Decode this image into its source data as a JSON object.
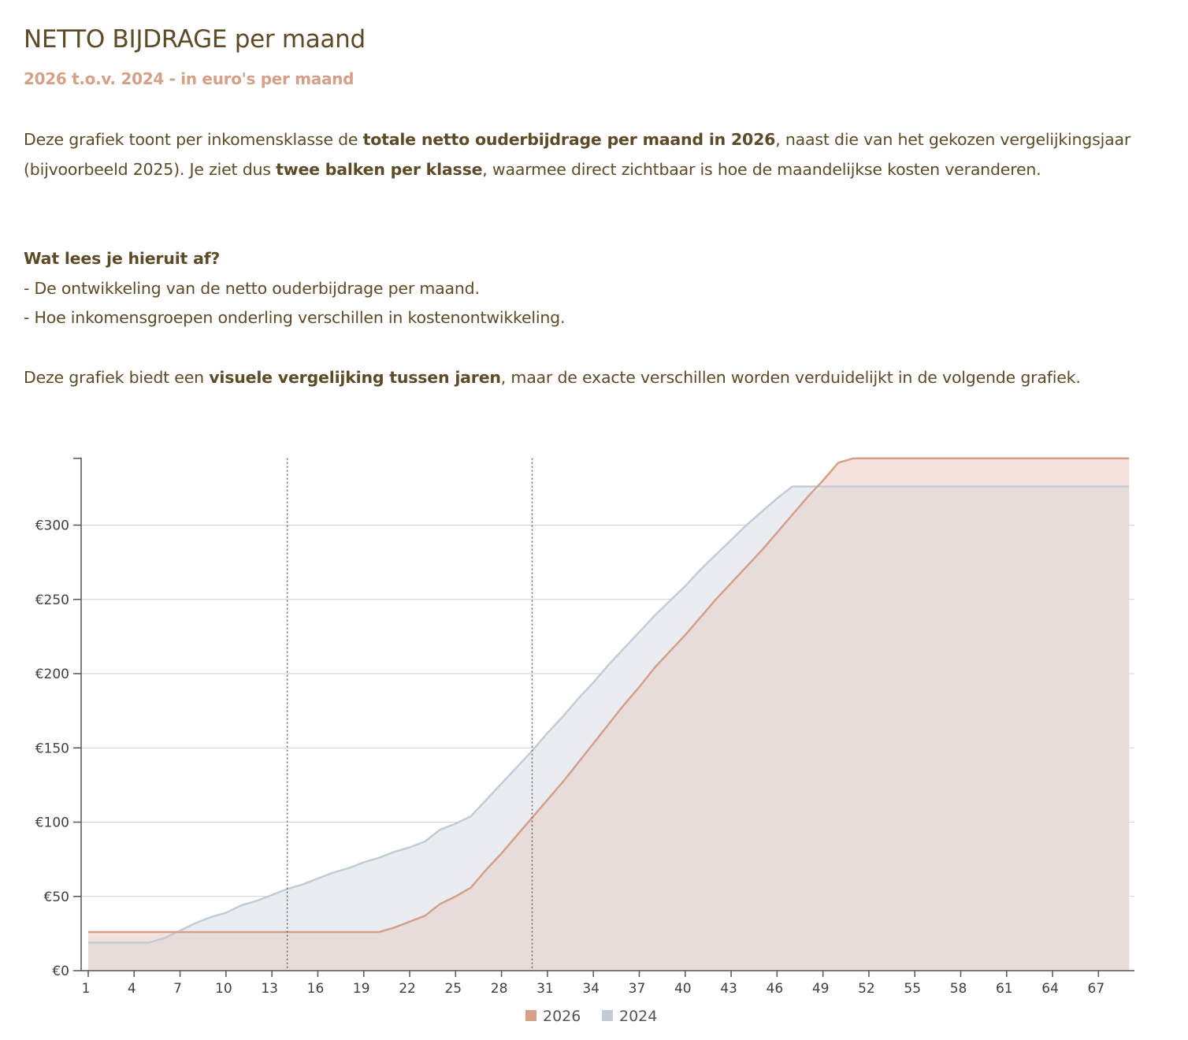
{
  "header": {
    "title": "NETTO BIJDRAGE per maand",
    "subtitle": "2026 t.o.v. 2024 - in euro's per maand"
  },
  "intro": {
    "p1_a": "Deze grafiek toont per inkomensklasse de ",
    "p1_b": "totale netto ouderbijdrage per maand in 2026",
    "p1_c": ", naast die van het gekozen vergelijkingsjaar (bijvoorbeeld 2025). Je ziet dus ",
    "p1_d": "twee balken per klasse",
    "p1_e": ", waarmee direct zichtbaar is hoe de maandelijkse kosten veranderen.",
    "q_heading": "Wat lees je hieruit af?",
    "bullet1": "- De ontwikkeling van de netto ouderbijdrage per maand.",
    "bullet2": "- Hoe inkomensgroepen onderling verschillen in kostenontwikkeling.",
    "p3_a": "Deze grafiek biedt een ",
    "p3_b": "visuele vergelijking tussen jaren",
    "p3_c": ", maar de exacte verschillen worden verduidelijkt in de volgende grafiek."
  },
  "colors": {
    "s2026_line": "#d4a088",
    "s2026_fill": "#f4e2dc",
    "s2024_line": "#c3ccd4",
    "s2024_fill": "#e9edf1",
    "overlap_fill": "#e7dcd9",
    "grid": "#cfcfcf",
    "axis": "#555555",
    "vline": "#666666"
  },
  "chart_data": {
    "type": "area",
    "x": [
      1,
      2,
      3,
      4,
      5,
      6,
      7,
      8,
      9,
      10,
      11,
      12,
      13,
      14,
      15,
      16,
      17,
      18,
      19,
      20,
      21,
      22,
      23,
      24,
      25,
      26,
      27,
      28,
      29,
      30,
      31,
      32,
      33,
      34,
      35,
      36,
      37,
      38,
      39,
      40,
      41,
      42,
      43,
      44,
      45,
      46,
      47,
      48,
      49,
      50,
      51,
      52,
      53,
      54,
      55,
      56,
      57,
      58,
      59,
      60,
      61,
      62,
      63,
      64,
      65,
      66,
      67,
      68,
      69
    ],
    "x_ticks": [
      1,
      4,
      7,
      10,
      13,
      16,
      19,
      22,
      25,
      28,
      31,
      34,
      37,
      40,
      43,
      46,
      49,
      52,
      55,
      58,
      61,
      64,
      67
    ],
    "x_tick_labels": [
      "1",
      "4",
      "7",
      "10",
      "13",
      "16",
      "19",
      "22",
      "25",
      "28",
      "31",
      "34",
      "37",
      "40",
      "43",
      "46",
      "49",
      "52",
      "55",
      "58",
      "61",
      "64",
      "67"
    ],
    "y_ticks": [
      0,
      50,
      100,
      150,
      200,
      250,
      300
    ],
    "y_tick_labels": [
      "€0",
      "€50",
      "€100",
      "€150",
      "€200",
      "€250",
      "€300"
    ],
    "ylim": [
      0,
      345
    ],
    "vlines": [
      14,
      30
    ],
    "series": [
      {
        "name": "2026",
        "values": [
          26,
          26,
          26,
          26,
          26,
          26,
          26,
          26,
          26,
          26,
          26,
          26,
          26,
          26,
          26,
          26,
          26,
          26,
          26,
          26,
          29,
          33,
          37,
          45,
          50,
          56,
          68,
          79,
          91,
          103,
          115,
          127,
          140,
          153,
          166,
          179,
          191,
          204,
          215,
          226,
          238,
          250,
          261,
          272,
          283,
          295,
          307,
          319,
          330,
          342,
          345,
          345,
          345,
          345,
          345,
          345,
          345,
          345,
          345,
          345,
          345,
          345,
          345,
          345,
          345,
          345,
          345,
          345,
          345
        ]
      },
      {
        "name": "2024",
        "values": [
          19,
          19,
          19,
          19,
          19,
          22,
          27,
          32,
          36,
          39,
          44,
          47,
          51,
          55,
          58,
          62,
          66,
          69,
          73,
          76,
          80,
          83,
          87,
          95,
          99,
          104,
          115,
          126,
          137,
          148,
          160,
          171,
          183,
          194,
          206,
          217,
          228,
          239,
          249,
          259,
          270,
          280,
          290,
          300,
          309,
          318,
          326,
          326,
          326,
          326,
          326,
          326,
          326,
          326,
          326,
          326,
          326,
          326,
          326,
          326,
          326,
          326,
          326,
          326,
          326,
          326,
          326,
          326,
          326
        ]
      }
    ]
  }
}
